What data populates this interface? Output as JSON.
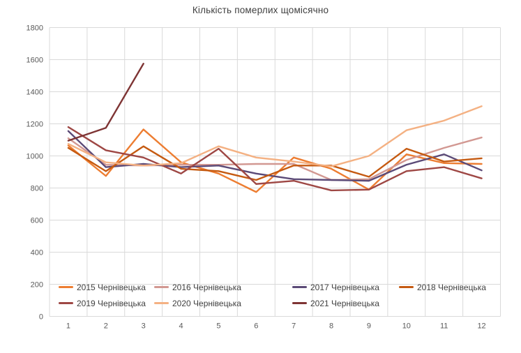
{
  "title": "Кількість померлих щомісячно",
  "chart_data": {
    "type": "line",
    "title": "Кількість померлих щомісячно",
    "x_categories": [
      "1",
      "2",
      "3",
      "4",
      "5",
      "6",
      "7",
      "8",
      "9",
      "10",
      "11",
      "12"
    ],
    "xlabel": "",
    "ylabel": "",
    "ylim": [
      0,
      1800
    ],
    "y_tick_step": 200,
    "grid": true,
    "legend_position": "inside-bottom-left",
    "gridline_color": "#d9d9d9",
    "tick_color": "#595959",
    "title_color": "#404040",
    "series": [
      {
        "name": "2015 Чернівецька",
        "color": "#ED7D31",
        "values": [
          1065,
          875,
          1165,
          960,
          890,
          775,
          990,
          920,
          790,
          1010,
          955,
          950
        ]
      },
      {
        "name": "2016 Чернівецька",
        "color": "#D29892",
        "values": [
          1110,
          945,
          940,
          945,
          945,
          950,
          950,
          850,
          855,
          975,
          1050,
          1115
        ]
      },
      {
        "name": "2017 Чернівецька",
        "color": "#5B4A77",
        "values": [
          1155,
          930,
          950,
          930,
          940,
          890,
          855,
          850,
          845,
          945,
          1010,
          910
        ]
      },
      {
        "name": "2018 Чернівецька",
        "color": "#C55A11",
        "values": [
          1050,
          905,
          1060,
          920,
          905,
          850,
          940,
          940,
          870,
          1045,
          965,
          985
        ]
      },
      {
        "name": "2019 Чернівецька",
        "color": "#9E4744",
        "values": [
          1180,
          1035,
          990,
          890,
          1045,
          825,
          845,
          785,
          790,
          905,
          930,
          860
        ]
      },
      {
        "name": "2020 Чернівецька",
        "color": "#F4B183",
        "values": [
          1075,
          960,
          940,
          955,
          1060,
          990,
          965,
          935,
          1000,
          1160,
          1220,
          1310
        ]
      },
      {
        "name": "2021 Чернівецька",
        "color": "#7E3434",
        "values": [
          1095,
          1175,
          1575,
          null,
          null,
          null,
          null,
          null,
          null,
          null,
          null,
          null
        ]
      }
    ]
  }
}
